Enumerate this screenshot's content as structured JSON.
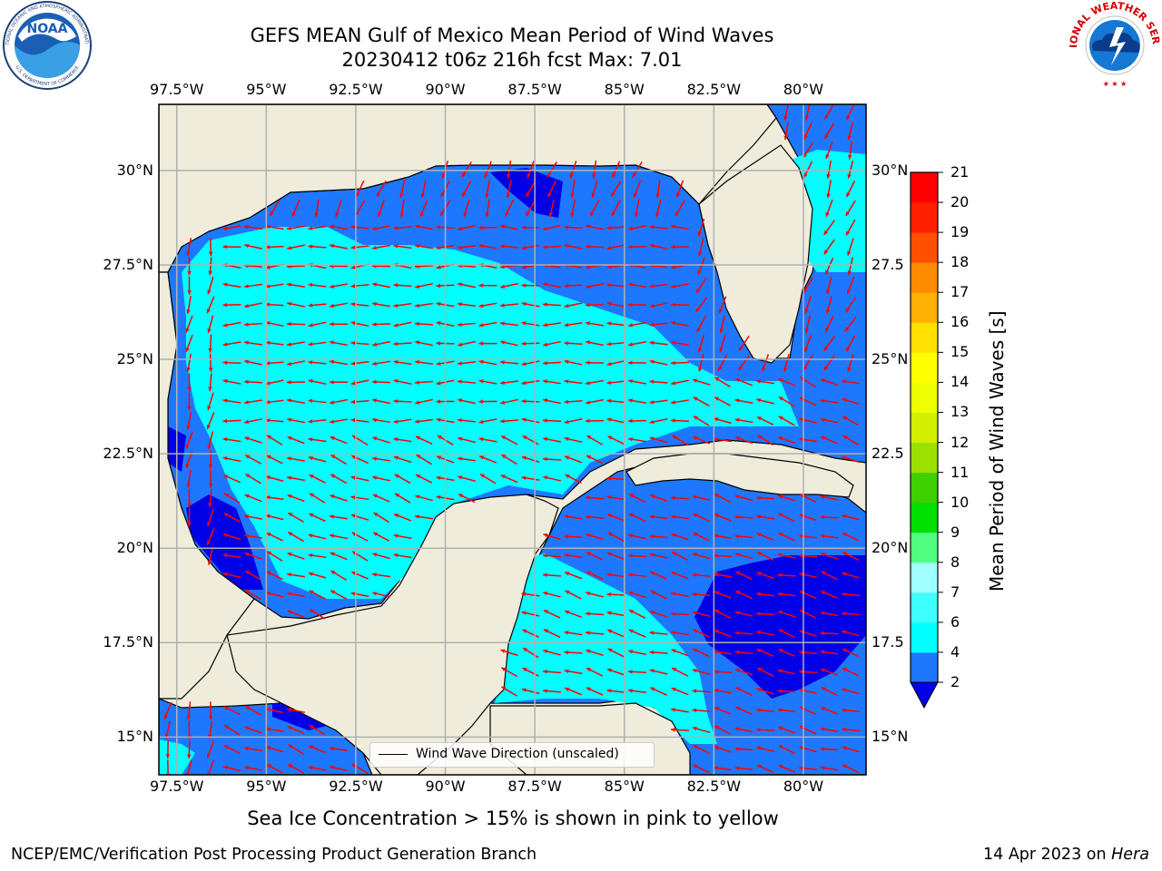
{
  "header": {
    "title_line1": "GEFS MEAN Gulf of Mexico Mean Period of Wind Waves",
    "title_line2": "20230412 t06z 216h fcst   Max: 7.01"
  },
  "logos": {
    "noaa_text": "NOAA",
    "noaa_ring_text": "NATIONAL OCEANIC AND ATMOSPHERIC ADMINISTRATION",
    "noaa_ring_text_bottom": "U.S. DEPARTMENT OF COMMERCE",
    "nws_ring_text": "NATIONAL WEATHER SERVICE"
  },
  "map": {
    "lon_ticks": [
      "97.5°W",
      "95°W",
      "92.5°W",
      "90°W",
      "87.5°W",
      "85°W",
      "82.5°W",
      "80°W"
    ],
    "lon_values": [
      -97.5,
      -95,
      -92.5,
      -90,
      -87.5,
      -85,
      -82.5,
      -80
    ],
    "lat_ticks_left": [
      "30°N",
      "27.5°N",
      "25°N",
      "22.5°N",
      "20°N",
      "17.5°N",
      "15°N"
    ],
    "lat_ticks_right": [
      "30°N",
      "27.5",
      "25°N",
      "22.5",
      "20°N",
      "17.5",
      "15°N"
    ],
    "lat_values": [
      30,
      27.5,
      25,
      22.5,
      20,
      17.5,
      15
    ],
    "lon_range": [
      -98,
      -78.25
    ],
    "lat_range": [
      14,
      31.75
    ],
    "arrow_color": "#ff0000",
    "land_color": "#efecdc",
    "grid_color": "#b0b0b0",
    "legend_label": "Wind Wave Direction (unscaled)"
  },
  "colorbar": {
    "label": "Mean Period of Wind Waves [s]",
    "tick_labels": [
      "2",
      "4",
      "6",
      "7",
      "8",
      "9",
      "10",
      "11",
      "12",
      "13",
      "14",
      "15",
      "16",
      "17",
      "18",
      "19",
      "20",
      "21"
    ],
    "colors": [
      "#0000e6",
      "#1e78ff",
      "#00ffff",
      "#40ffff",
      "#a0ffff",
      "#50ff80",
      "#00e000",
      "#40d000",
      "#9ce000",
      "#d0f000",
      "#eeff00",
      "#ffff00",
      "#ffe000",
      "#ffb000",
      "#ff8c00",
      "#ff5000",
      "#ff2000",
      "#ff0000"
    ]
  },
  "subtitle": "Sea Ice Concentration > 15% is shown in pink to yellow",
  "footer": {
    "left": "NCEP/EMC/Verification Post Processing Product Generation Branch",
    "right_date": "14 Apr 2023 on ",
    "right_host": "Hera"
  }
}
